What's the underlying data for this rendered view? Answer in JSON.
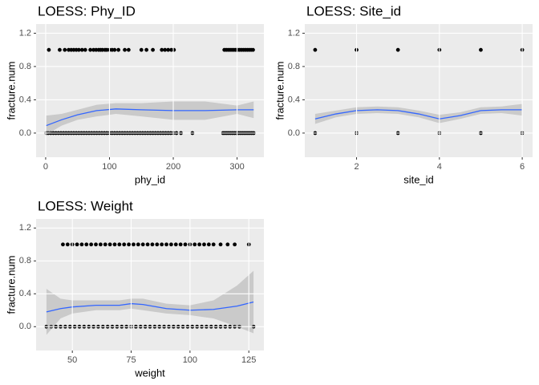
{
  "chart_data": [
    {
      "type": "scatter",
      "title": "LOESS: Phy_ID",
      "x_label": "phy_id",
      "y_label": "fracture.num",
      "xlim": [
        -15,
        342
      ],
      "ylim": [
        -0.29,
        1.31
      ],
      "xticks": [
        0,
        100,
        200,
        300
      ],
      "yticks": [
        {
          "value": 0,
          "label": "0.0"
        },
        0.4,
        0.8,
        1.2
      ],
      "grid": true,
      "series": [
        {
          "color": "#000000",
          "x": [
            5,
            22,
            30,
            36,
            40,
            44,
            48,
            52,
            57,
            62,
            70,
            75,
            79,
            83,
            86,
            89,
            93,
            96,
            100,
            104,
            108,
            114,
            124,
            130,
            150,
            158,
            168,
            182,
            187,
            192,
            197,
            201,
            280,
            283,
            286,
            289,
            292,
            295,
            298,
            301,
            304,
            307,
            310,
            313,
            316,
            319,
            322,
            325
          ],
          "values": [
            1,
            1,
            1,
            1,
            1,
            1,
            1,
            1,
            1,
            1,
            1,
            1,
            1,
            1,
            1,
            1,
            1,
            1,
            1,
            1,
            1,
            1,
            1,
            1,
            1,
            1,
            1,
            1,
            1,
            1,
            1,
            1,
            1,
            1,
            1,
            1,
            1,
            1,
            1,
            1,
            1,
            1,
            1,
            1,
            1,
            1,
            1,
            1
          ]
        },
        {
          "color": "#000000",
          "x": [
            1,
            4,
            8,
            12,
            16,
            20,
            24,
            28,
            32,
            36,
            40,
            44,
            48,
            52,
            56,
            60,
            64,
            68,
            72,
            76,
            80,
            84,
            88,
            92,
            96,
            100,
            104,
            108,
            112,
            116,
            120,
            124,
            128,
            132,
            136,
            140,
            144,
            148,
            152,
            156,
            160,
            164,
            168,
            172,
            176,
            180,
            184,
            188,
            192,
            196,
            200,
            205,
            212,
            230,
            278,
            281,
            284,
            287,
            290,
            293,
            296,
            299,
            302,
            305,
            308,
            311,
            314,
            317,
            320,
            323,
            326
          ],
          "values": [
            0,
            0,
            0,
            0,
            0,
            0,
            0,
            0,
            0,
            0,
            0,
            0,
            0,
            0,
            0,
            0,
            0,
            0,
            0,
            0,
            0,
            0,
            0,
            0,
            0,
            0,
            0,
            0,
            0,
            0,
            0,
            0,
            0,
            0,
            0,
            0,
            0,
            0,
            0,
            0,
            0,
            0,
            0,
            0,
            0,
            0,
            0,
            0,
            0,
            0,
            0,
            0,
            0,
            0,
            0,
            0,
            0,
            0,
            0,
            0,
            0,
            0,
            0,
            0,
            0,
            0,
            0,
            0,
            0,
            0,
            0
          ]
        }
      ],
      "smooth": {
        "color": "#3366ff",
        "fill": "#999999",
        "x": [
          1,
          25,
          50,
          80,
          110,
          150,
          200,
          250,
          300,
          326
        ],
        "values": [
          0.09,
          0.16,
          0.22,
          0.27,
          0.29,
          0.28,
          0.27,
          0.27,
          0.28,
          0.28
        ],
        "lower": [
          -0.02,
          0.09,
          0.16,
          0.2,
          0.23,
          0.2,
          0.16,
          0.16,
          0.23,
          0.18
        ],
        "upper": [
          0.21,
          0.23,
          0.28,
          0.34,
          0.36,
          0.36,
          0.38,
          0.38,
          0.33,
          0.38
        ]
      }
    },
    {
      "type": "scatter",
      "title": "LOESS: Site_id",
      "x_label": "site_id",
      "y_label": "fracture.num",
      "xlim": [
        0.75,
        6.25
      ],
      "ylim": [
        -0.29,
        1.31
      ],
      "xticks": [
        2,
        4,
        6
      ],
      "yticks": [
        {
          "value": 0,
          "label": "0.0"
        },
        0.4,
        0.8,
        1.2
      ],
      "grid": true,
      "series": [
        {
          "color": "#000000",
          "x": [
            1,
            2,
            3,
            4,
            5,
            6
          ],
          "values": [
            1,
            1,
            1,
            1,
            1,
            1
          ]
        },
        {
          "color": "#000000",
          "x": [
            1,
            2,
            3,
            4,
            5,
            6
          ],
          "values": [
            0,
            0,
            0,
            0,
            0,
            0
          ]
        }
      ],
      "smooth": {
        "color": "#3366ff",
        "fill": "#999999",
        "x": [
          1,
          1.5,
          2,
          2.5,
          3,
          3.5,
          4,
          4.5,
          5,
          5.5,
          6
        ],
        "values": [
          0.17,
          0.23,
          0.27,
          0.28,
          0.27,
          0.23,
          0.17,
          0.21,
          0.27,
          0.28,
          0.28
        ],
        "lower": [
          0.11,
          0.19,
          0.23,
          0.24,
          0.23,
          0.19,
          0.12,
          0.17,
          0.23,
          0.24,
          0.21
        ],
        "upper": [
          0.23,
          0.27,
          0.31,
          0.32,
          0.31,
          0.27,
          0.22,
          0.25,
          0.31,
          0.32,
          0.35
        ]
      }
    },
    {
      "type": "scatter",
      "title": "LOESS: Weight",
      "x_label": "weight",
      "y_label": "fracture.num",
      "xlim": [
        34.6,
        131.4
      ],
      "ylim": [
        -0.29,
        1.31
      ],
      "xticks": [
        50,
        75,
        100,
        125
      ],
      "yticks": [
        {
          "value": 0,
          "label": "0.0"
        },
        0.4,
        0.8,
        1.2
      ],
      "grid": true,
      "series": [
        {
          "color": "#000000",
          "x": [
            46,
            48,
            50,
            52,
            54,
            56,
            58,
            60,
            62,
            64,
            66,
            68,
            70,
            72,
            74,
            76,
            78,
            80,
            82,
            84,
            86,
            88,
            90,
            92,
            94,
            96,
            98,
            100,
            102,
            104,
            106,
            108,
            110,
            113,
            116,
            119,
            125
          ],
          "values": [
            1,
            1,
            1,
            1,
            1,
            1,
            1,
            1,
            1,
            1,
            1,
            1,
            1,
            1,
            1,
            1,
            1,
            1,
            1,
            1,
            1,
            1,
            1,
            1,
            1,
            1,
            1,
            1,
            1,
            1,
            1,
            1,
            1,
            1,
            1,
            1,
            1
          ]
        },
        {
          "color": "#000000",
          "x": [
            39,
            41,
            43,
            45,
            47,
            49,
            51,
            53,
            55,
            57,
            59,
            61,
            63,
            65,
            67,
            69,
            71,
            73,
            75,
            77,
            79,
            81,
            83,
            85,
            87,
            89,
            91,
            93,
            95,
            97,
            99,
            101,
            103,
            105,
            107,
            109,
            111,
            113,
            115,
            117,
            119,
            121,
            127
          ],
          "values": [
            0,
            0,
            0,
            0,
            0,
            0,
            0,
            0,
            0,
            0,
            0,
            0,
            0,
            0,
            0,
            0,
            0,
            0,
            0,
            0,
            0,
            0,
            0,
            0,
            0,
            0,
            0,
            0,
            0,
            0,
            0,
            0,
            0,
            0,
            0,
            0,
            0,
            0,
            0,
            0,
            0,
            0,
            0
          ]
        }
      ],
      "smooth": {
        "color": "#3366ff",
        "fill": "#999999",
        "x": [
          39,
          45,
          50,
          60,
          70,
          75,
          80,
          90,
          100,
          110,
          120,
          127
        ],
        "values": [
          0.18,
          0.22,
          0.24,
          0.26,
          0.26,
          0.28,
          0.27,
          0.22,
          0.2,
          0.21,
          0.25,
          0.3
        ],
        "lower": [
          -0.1,
          0.1,
          0.16,
          0.2,
          0.2,
          0.22,
          0.2,
          0.16,
          0.14,
          0.1,
          0.0,
          -0.08
        ],
        "upper": [
          0.46,
          0.34,
          0.32,
          0.32,
          0.32,
          0.34,
          0.34,
          0.28,
          0.26,
          0.32,
          0.5,
          0.68
        ]
      }
    }
  ]
}
